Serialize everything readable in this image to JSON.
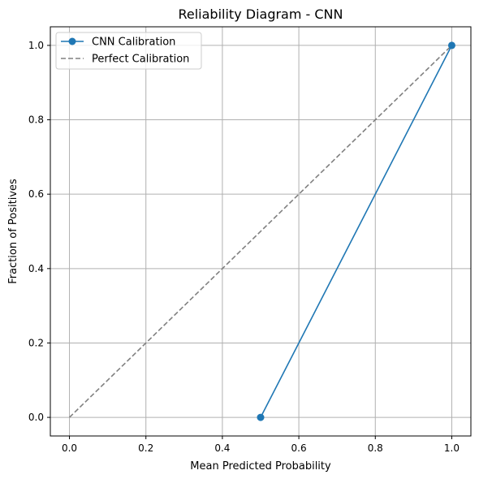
{
  "chart_data": {
    "type": "line",
    "title": "Reliability Diagram - CNN",
    "xlabel": "Mean Predicted Probability",
    "ylabel": "Fraction of Positives",
    "xlim": [
      -0.05,
      1.05
    ],
    "ylim": [
      -0.05,
      1.05
    ],
    "x_ticks": [
      0.0,
      0.2,
      0.4,
      0.6,
      0.8,
      1.0
    ],
    "y_ticks": [
      0.0,
      0.2,
      0.4,
      0.6,
      0.8,
      1.0
    ],
    "x_tick_labels": [
      "0.0",
      "0.2",
      "0.4",
      "0.6",
      "0.8",
      "1.0"
    ],
    "y_tick_labels": [
      "0.0",
      "0.2",
      "0.4",
      "0.6",
      "0.8",
      "1.0"
    ],
    "grid": true,
    "legend_position": "upper-left",
    "series": [
      {
        "name": "CNN Calibration",
        "x": [
          0.5,
          1.0
        ],
        "y": [
          0.0,
          1.0
        ],
        "color": "#1f77b4",
        "style": "solid",
        "marker": "circle"
      },
      {
        "name": "Perfect Calibration",
        "x": [
          0.0,
          1.0
        ],
        "y": [
          0.0,
          1.0
        ],
        "color": "#808080",
        "style": "dashed",
        "marker": "none"
      }
    ]
  }
}
